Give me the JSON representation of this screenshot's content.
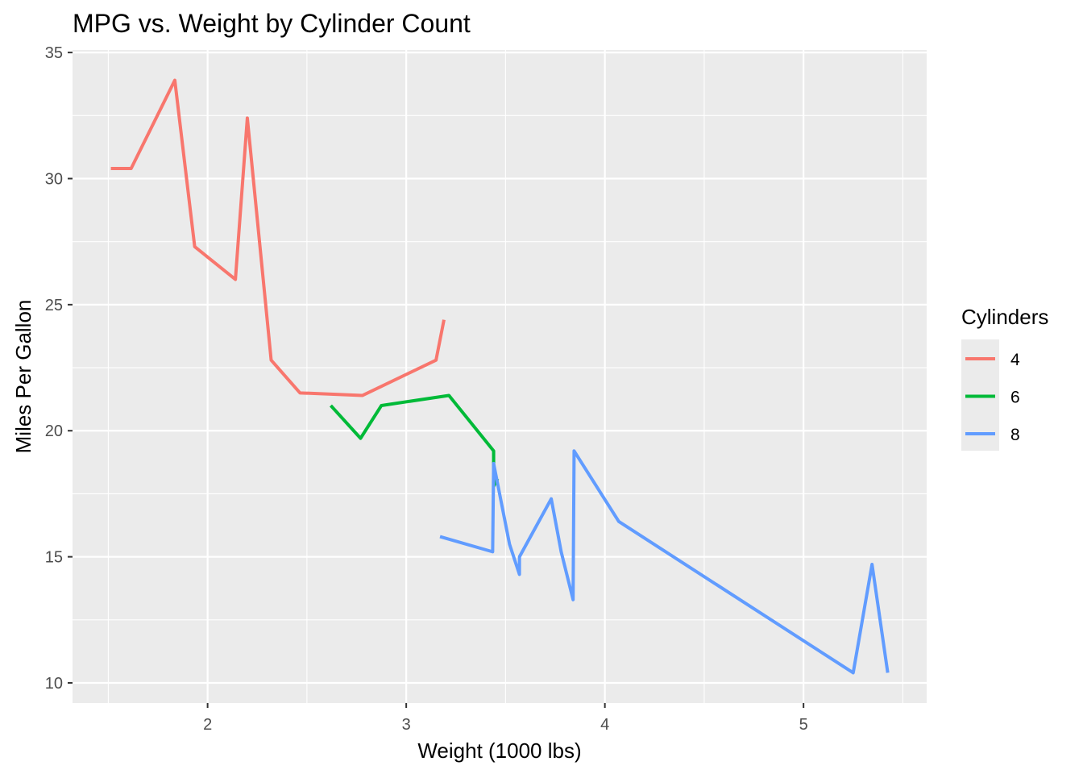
{
  "chart_data": {
    "type": "line",
    "title": "MPG vs. Weight by Cylinder Count",
    "xlabel": "Weight (1000 lbs)",
    "ylabel": "Miles Per Gallon",
    "xlim": [
      1.32,
      5.62
    ],
    "ylim": [
      9.2,
      35.1
    ],
    "x_ticks": [
      2,
      3,
      4,
      5
    ],
    "x_minor_ticks": [
      1.5,
      2.5,
      3.5,
      4.5,
      5.5
    ],
    "y_ticks": [
      10,
      15,
      20,
      25,
      30,
      35
    ],
    "y_minor_ticks": [
      12.5,
      17.5,
      22.5,
      27.5,
      32.5
    ],
    "grid": true,
    "legend": {
      "title": "Cylinders",
      "position": "right"
    },
    "series": [
      {
        "name": "4",
        "color": "#F8766D",
        "points": [
          [
            1.513,
            30.4
          ],
          [
            1.615,
            30.4
          ],
          [
            1.835,
            33.9
          ],
          [
            1.935,
            27.3
          ],
          [
            2.14,
            26.0
          ],
          [
            2.2,
            32.4
          ],
          [
            2.32,
            22.8
          ],
          [
            2.465,
            21.5
          ],
          [
            2.78,
            21.4
          ],
          [
            3.15,
            22.8
          ],
          [
            3.19,
            24.4
          ]
        ]
      },
      {
        "name": "6",
        "color": "#00BA38",
        "points": [
          [
            2.62,
            21.0
          ],
          [
            2.77,
            19.7
          ],
          [
            2.875,
            21.0
          ],
          [
            3.215,
            21.4
          ],
          [
            3.44,
            19.2
          ],
          [
            3.44,
            17.8
          ],
          [
            3.46,
            18.1
          ]
        ]
      },
      {
        "name": "8",
        "color": "#619CFF",
        "points": [
          [
            3.17,
            15.8
          ],
          [
            3.435,
            15.2
          ],
          [
            3.44,
            18.7
          ],
          [
            3.52,
            15.5
          ],
          [
            3.57,
            14.3
          ],
          [
            3.57,
            15.0
          ],
          [
            3.73,
            17.3
          ],
          [
            3.78,
            15.2
          ],
          [
            3.84,
            13.3
          ],
          [
            3.845,
            19.2
          ],
          [
            4.07,
            16.4
          ],
          [
            5.25,
            10.4
          ],
          [
            5.345,
            14.7
          ],
          [
            5.424,
            10.4
          ]
        ]
      }
    ]
  }
}
